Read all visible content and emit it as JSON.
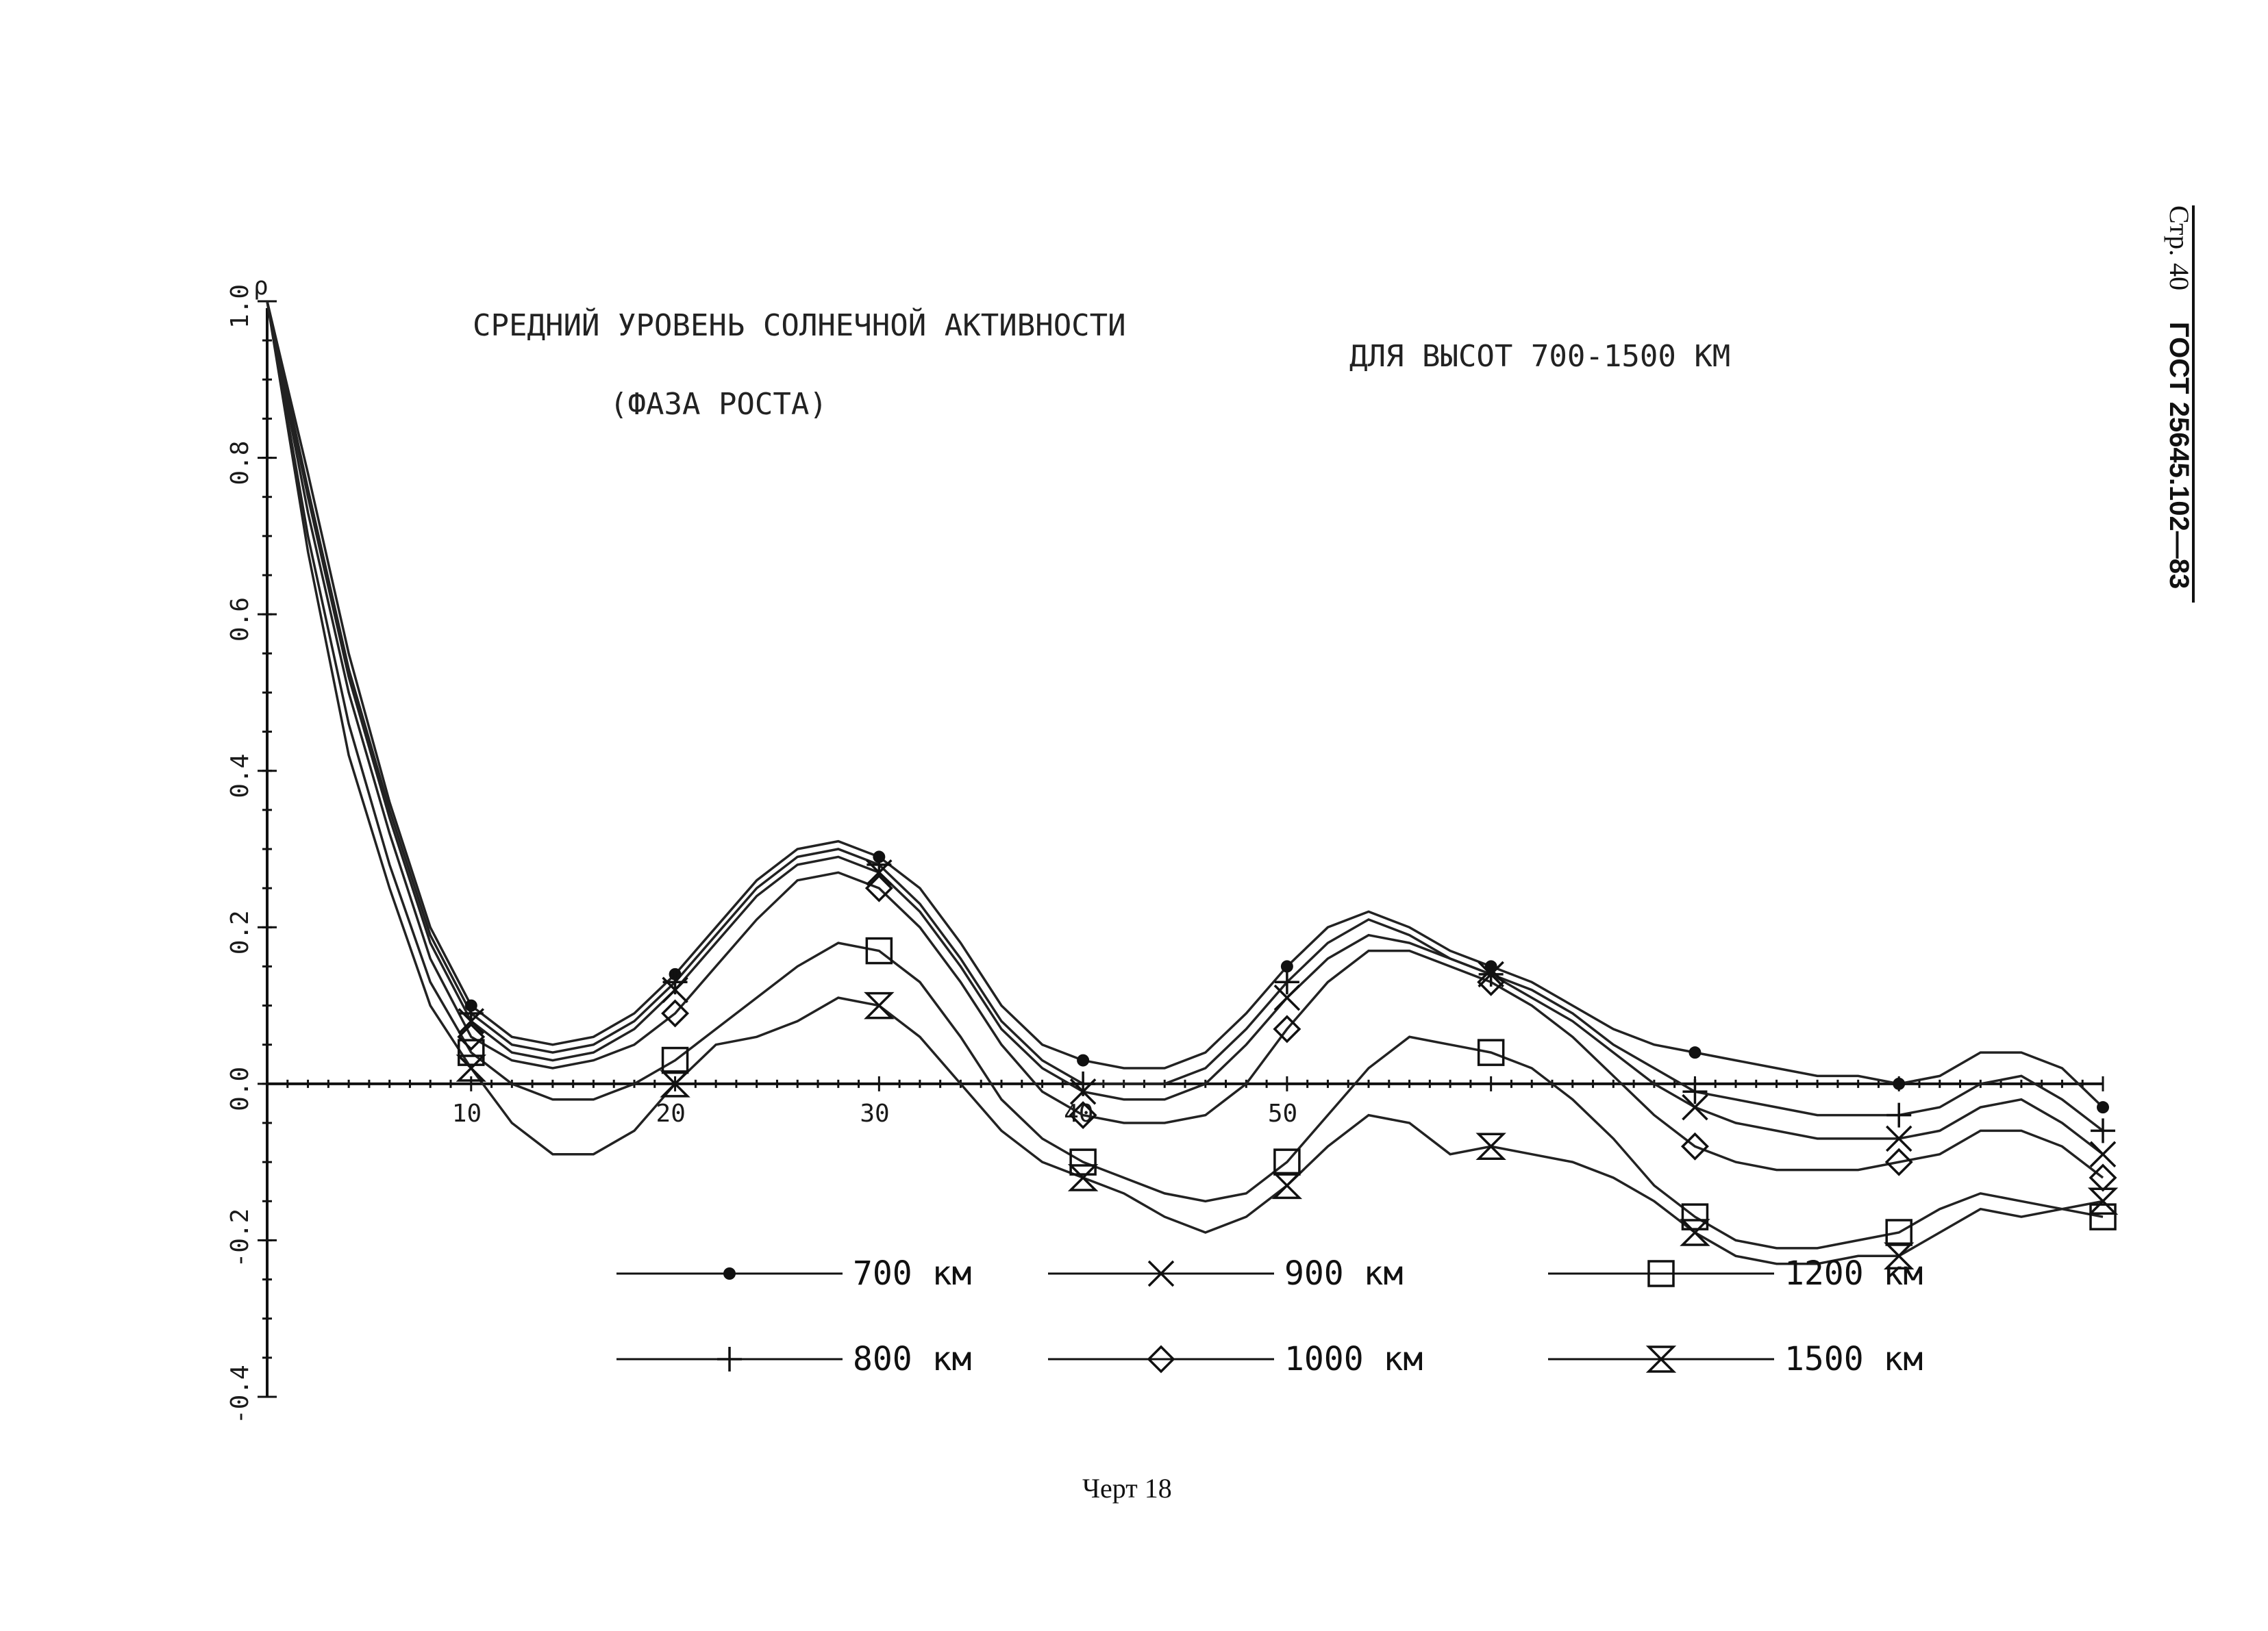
{
  "header": {
    "page": "Стр. 40",
    "standard": "ГОСТ 25645.102—83"
  },
  "caption": "Черт 18",
  "chart_data": {
    "type": "line",
    "title": "СРЕДНИЙ УРОВЕНЬ СОЛНЕЧНОЙ АКТИВНОСТИ",
    "subtitle": "(ФАЗА РОСТА)",
    "title_right": "ДЛЯ ВЫСОТ 700-1500 КМ",
    "ylabel": "ρ",
    "xlabel": "",
    "xlim": [
      0,
      90
    ],
    "ylim": [
      -0.4,
      1.0
    ],
    "x_ticks": [
      "10",
      "20",
      "30",
      "40",
      "50"
    ],
    "y_ticks": [
      "-0.4",
      "-0.2",
      "0.0",
      "0.2",
      "0.4",
      "0.6",
      "0.8",
      "1.0"
    ],
    "grid": false,
    "legend_position": "bottom",
    "x": [
      0,
      2,
      4,
      6,
      8,
      10,
      12,
      14,
      16,
      18,
      20,
      22,
      24,
      26,
      28,
      30,
      32,
      34,
      36,
      38,
      40,
      42,
      44,
      46,
      48,
      50,
      52,
      54,
      56,
      58,
      60,
      62,
      64,
      66,
      68,
      70,
      72,
      74,
      76,
      78,
      80,
      82,
      84,
      86,
      88,
      90
    ],
    "series": [
      {
        "name": "700 км",
        "marker": "dot",
        "values": [
          1.0,
          0.78,
          0.55,
          0.36,
          0.2,
          0.1,
          0.06,
          0.05,
          0.06,
          0.09,
          0.14,
          0.2,
          0.26,
          0.3,
          0.31,
          0.29,
          0.25,
          0.18,
          0.1,
          0.05,
          0.03,
          0.02,
          0.02,
          0.04,
          0.09,
          0.15,
          0.2,
          0.22,
          0.2,
          0.17,
          0.15,
          0.13,
          0.1,
          0.07,
          0.05,
          0.04,
          0.03,
          0.02,
          0.01,
          0.01,
          0.0,
          0.01,
          0.04,
          0.04,
          0.02,
          -0.03
        ]
      },
      {
        "name": "800 км",
        "marker": "plus",
        "values": [
          1.0,
          0.76,
          0.53,
          0.35,
          0.19,
          0.09,
          0.05,
          0.04,
          0.05,
          0.08,
          0.13,
          0.19,
          0.25,
          0.29,
          0.3,
          0.28,
          0.23,
          0.16,
          0.08,
          0.03,
          0.0,
          0.0,
          0.0,
          0.02,
          0.07,
          0.13,
          0.18,
          0.21,
          0.19,
          0.16,
          0.14,
          0.12,
          0.09,
          0.05,
          0.02,
          -0.01,
          -0.02,
          -0.03,
          -0.04,
          -0.04,
          -0.04,
          -0.03,
          0.0,
          0.01,
          -0.02,
          -0.06
        ]
      },
      {
        "name": "900 км",
        "marker": "cross",
        "values": [
          1.0,
          0.75,
          0.52,
          0.34,
          0.18,
          0.08,
          0.04,
          0.03,
          0.04,
          0.07,
          0.12,
          0.18,
          0.24,
          0.28,
          0.29,
          0.27,
          0.22,
          0.15,
          0.07,
          0.02,
          -0.01,
          -0.02,
          -0.02,
          0.0,
          0.05,
          0.11,
          0.16,
          0.19,
          0.18,
          0.16,
          0.14,
          0.11,
          0.08,
          0.04,
          0.0,
          -0.03,
          -0.05,
          -0.06,
          -0.07,
          -0.07,
          -0.07,
          -0.06,
          -0.03,
          -0.02,
          -0.05,
          -0.09
        ]
      },
      {
        "name": "1000 км",
        "marker": "diamond",
        "values": [
          1.0,
          0.73,
          0.5,
          0.32,
          0.16,
          0.06,
          0.03,
          0.02,
          0.03,
          0.05,
          0.09,
          0.15,
          0.21,
          0.26,
          0.27,
          0.25,
          0.2,
          0.13,
          0.05,
          -0.01,
          -0.04,
          -0.05,
          -0.05,
          -0.04,
          0.0,
          0.07,
          0.13,
          0.17,
          0.17,
          0.15,
          0.13,
          0.1,
          0.06,
          0.01,
          -0.04,
          -0.08,
          -0.1,
          -0.11,
          -0.11,
          -0.11,
          -0.1,
          -0.09,
          -0.06,
          -0.06,
          -0.08,
          -0.12
        ]
      },
      {
        "name": "1200 км",
        "marker": "square",
        "values": [
          1.0,
          0.7,
          0.46,
          0.28,
          0.13,
          0.04,
          0.0,
          -0.02,
          -0.02,
          0.0,
          0.03,
          0.07,
          0.11,
          0.15,
          0.18,
          0.17,
          0.13,
          0.06,
          -0.02,
          -0.07,
          -0.1,
          -0.12,
          -0.14,
          -0.15,
          -0.14,
          -0.1,
          -0.04,
          0.02,
          0.06,
          0.05,
          0.04,
          0.02,
          -0.02,
          -0.07,
          -0.13,
          -0.17,
          -0.2,
          -0.21,
          -0.21,
          -0.2,
          -0.19,
          -0.16,
          -0.14,
          -0.15,
          -0.16,
          -0.17
        ]
      },
      {
        "name": "1500 км",
        "marker": "hourglass",
        "values": [
          1.0,
          0.68,
          0.42,
          0.25,
          0.1,
          0.02,
          -0.05,
          -0.09,
          -0.09,
          -0.06,
          0.0,
          0.05,
          0.06,
          0.08,
          0.11,
          0.1,
          0.06,
          0.0,
          -0.06,
          -0.1,
          -0.12,
          -0.14,
          -0.17,
          -0.19,
          -0.17,
          -0.13,
          -0.08,
          -0.04,
          -0.05,
          -0.09,
          -0.08,
          -0.09,
          -0.1,
          -0.12,
          -0.15,
          -0.19,
          -0.22,
          -0.23,
          -0.23,
          -0.22,
          -0.22,
          -0.19,
          -0.16,
          -0.17,
          -0.16,
          -0.15
        ]
      }
    ]
  }
}
